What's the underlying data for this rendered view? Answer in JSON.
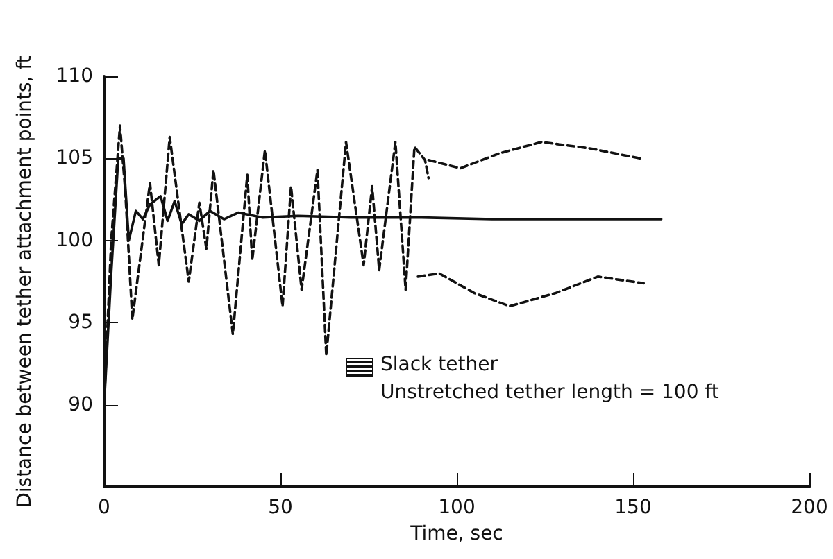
{
  "chart_data": {
    "type": "line",
    "xlabel": "Time, sec",
    "ylabel": "Distance between tether attachment points, ft",
    "xlim": [
      0,
      200
    ],
    "xticks": [
      0,
      50,
      100,
      150,
      200
    ],
    "ylim": [
      85,
      110
    ],
    "yticks": [
      90,
      95,
      100,
      105,
      110
    ],
    "grid": false,
    "marker": "none",
    "annotations": [
      "Slack tether",
      "Unstretched tether length = 100 ft"
    ],
    "series": [
      {
        "color": "#111111",
        "line_style": "solid",
        "x": [
          0,
          2,
          4,
          5.5,
          7,
          9,
          11,
          13,
          16,
          18,
          20,
          22,
          24,
          27,
          30,
          34,
          38,
          45,
          55,
          70,
          90,
          110,
          130,
          158
        ],
        "values": [
          90,
          98,
          105,
          105,
          100,
          101.8,
          101.3,
          102.2,
          102.7,
          101.2,
          102.4,
          101.0,
          101.6,
          101.2,
          101.8,
          101.3,
          101.7,
          101.4,
          101.5,
          101.4,
          101.4,
          101.3,
          101.3,
          101.3
        ]
      },
      {
        "color": "#111111",
        "line_style": "dashed",
        "x": [
          0,
          2,
          4.5,
          6,
          8,
          13,
          15.5,
          18.6,
          24,
          27,
          29,
          31,
          36.5,
          40.6,
          42,
          45.6,
          50.6,
          53,
          56,
          60.5,
          63,
          68.6,
          73.6,
          76,
          78,
          82.6,
          85.5,
          88,
          91,
          92
        ],
        "values": [
          90,
          100,
          107,
          103,
          95.2,
          103.5,
          98.5,
          106.3,
          97.5,
          102.3,
          99.5,
          104.3,
          94.3,
          104,
          98.8,
          105.5,
          96,
          103.3,
          97,
          104.3,
          93,
          106,
          98.5,
          103.3,
          98.2,
          106,
          97,
          105.7,
          104.9,
          103.8
        ]
      },
      {
        "color": "#111111",
        "line_style": "dashed",
        "x": [
          92,
          101,
          112,
          124,
          138,
          152
        ],
        "values": [
          104.9,
          104.4,
          105.3,
          106,
          105.6,
          105
        ]
      },
      {
        "color": "#111111",
        "line_style": "dashed",
        "x": [
          89,
          95,
          105,
          115,
          128,
          140,
          153
        ],
        "values": [
          97.8,
          98.0,
          96.8,
          96,
          96.8,
          97.8,
          97.4
        ]
      }
    ]
  }
}
